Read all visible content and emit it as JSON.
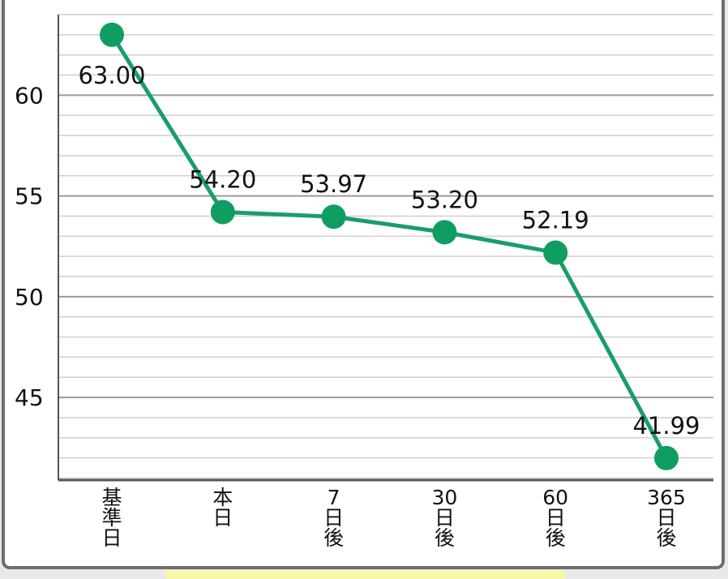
{
  "chart_data": {
    "type": "line",
    "categories": [
      "基\n準\n日",
      "本\n日",
      "7\n日\n後",
      "30\n日\n後",
      "60\n日\n後",
      "365\n日\n後"
    ],
    "series": [
      {
        "values": [
          63.0,
          54.2,
          53.97,
          53.2,
          52.19,
          41.99
        ],
        "labels": [
          "63.00",
          "54.20",
          "53.97",
          "53.20",
          "52.19",
          "41.99"
        ]
      }
    ],
    "yticks": [
      45,
      50,
      55,
      60
    ],
    "ylim": [
      40.9,
      64
    ],
    "grid": true,
    "minor_grid_step": 1,
    "colors": {
      "line": "#1a9e68",
      "marker": "#0f9d62",
      "grid_major": "#9a9a9a",
      "grid_minor": "#cfcfcf",
      "axis": "#555555"
    }
  }
}
